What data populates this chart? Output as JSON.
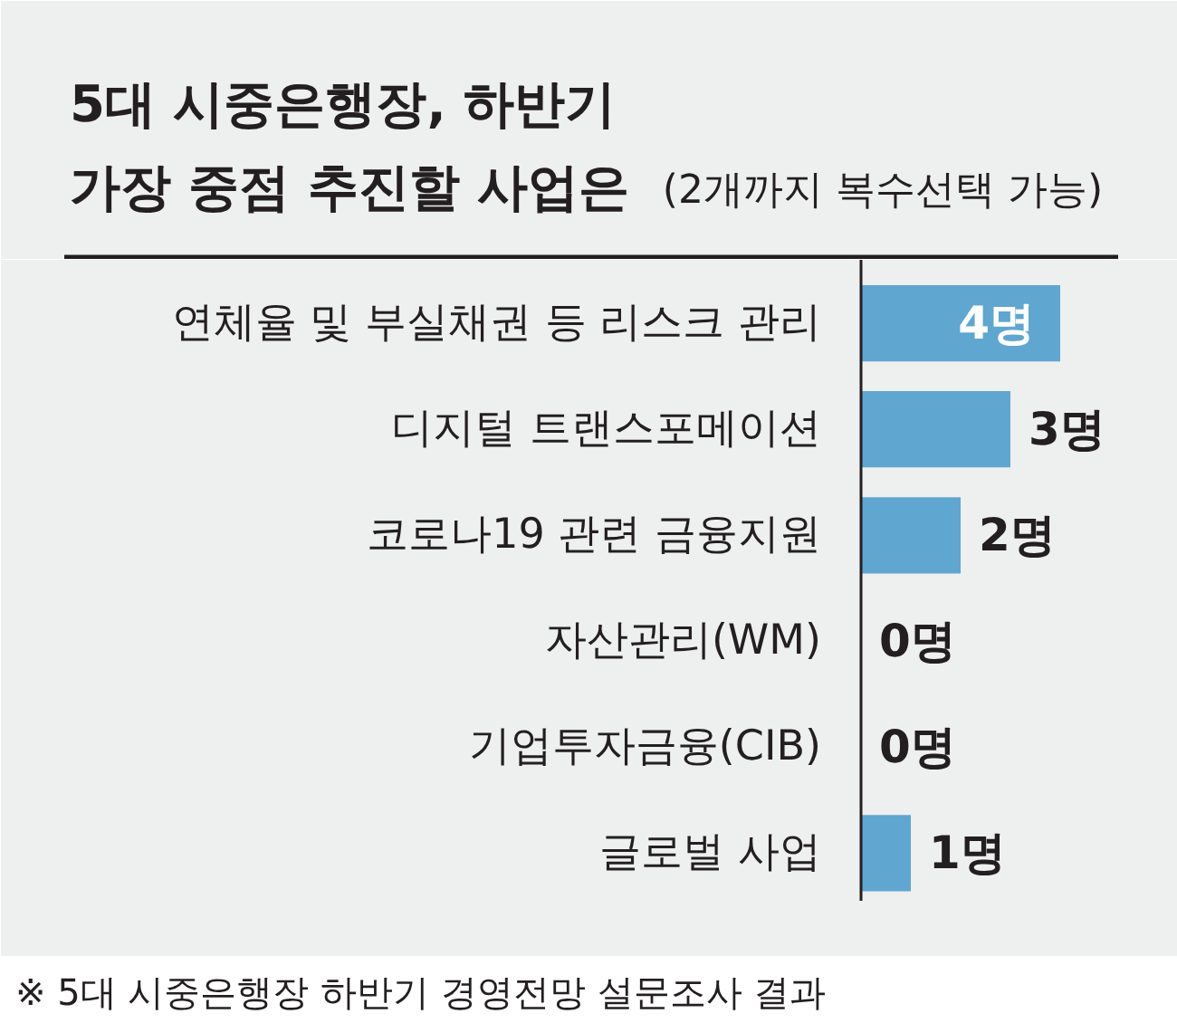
{
  "chart_data": {
    "type": "bar",
    "orientation": "horizontal",
    "title": "5대 시중은행장, 하반기 가장 중점 추진할 사업은",
    "subtitle": "(2개까지 복수선택 가능)",
    "categories": [
      "연체율 및 부실채권 등 리스크 관리",
      "디지털 트랜스포메이션",
      "코로나19 관련 금융지원",
      "자산관리(WM)",
      "기업투자금융(CIB)",
      "글로벌 사업"
    ],
    "values": [
      4,
      3,
      2,
      0,
      0,
      1
    ],
    "color": "#5fa6d1",
    "value_labels": [
      "4명",
      "3명",
      "2명",
      "0명",
      "0명",
      "1명"
    ],
    "annotations": [
      "※ 5대 시중은행장 하반기 경영전망 설문조사 결과"
    ],
    "grid": false,
    "tick_labels": "y"
  }
}
